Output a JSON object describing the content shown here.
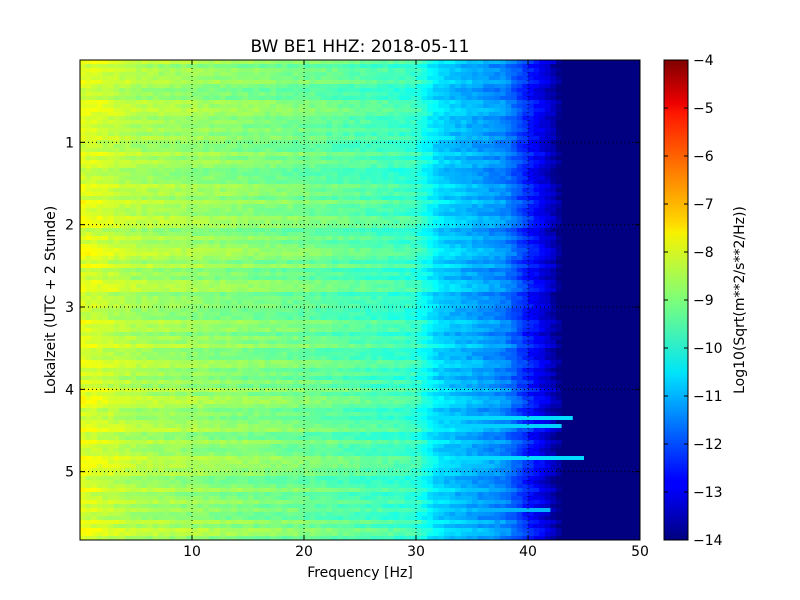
{
  "chart_data": {
    "type": "heatmap",
    "title": "BW BE1 HHZ: 2018-05-11",
    "xlabel": "Frequency [Hz]",
    "ylabel": "Lokalzeit (UTC + 2 Stunde)",
    "xlim": [
      0,
      50
    ],
    "ylim": [
      0,
      5.83
    ],
    "y_inverted": true,
    "grid": true,
    "x_ticks": [
      10,
      20,
      30,
      40,
      50
    ],
    "y_ticks": [
      1,
      2,
      3,
      4,
      5
    ],
    "colormap": "jet",
    "colorbar": {
      "label": "Log10(Sqrt(m**2/s**2/Hz))",
      "range": [
        -14,
        -4
      ],
      "ticks": [
        -4,
        -5,
        -6,
        -7,
        -8,
        -9,
        -10,
        -11,
        -12,
        -13,
        -14
      ]
    },
    "spectrum_profile": {
      "frequency_hz": [
        0,
        2,
        5,
        10,
        15,
        20,
        25,
        30,
        32,
        35,
        38,
        40,
        42,
        43,
        45,
        50
      ],
      "log10_amplitude": [
        -8.0,
        -8.2,
        -8.5,
        -8.7,
        -8.9,
        -9.1,
        -9.4,
        -9.7,
        -10.6,
        -11.0,
        -11.4,
        -12.4,
        -13.3,
        -14.0,
        -14.0,
        -14.0
      ]
    },
    "notable_lines": [
      {
        "time_h": 4.33,
        "log10_amplitude": -10.6,
        "extends_to_hz": 44
      },
      {
        "time_h": 4.45,
        "log10_amplitude": -10.7,
        "extends_to_hz": 43
      },
      {
        "time_h": 4.83,
        "log10_amplitude": -10.6,
        "extends_to_hz": 45
      },
      {
        "time_h": 5.45,
        "log10_amplitude": -11.0,
        "extends_to_hz": 42
      }
    ]
  }
}
